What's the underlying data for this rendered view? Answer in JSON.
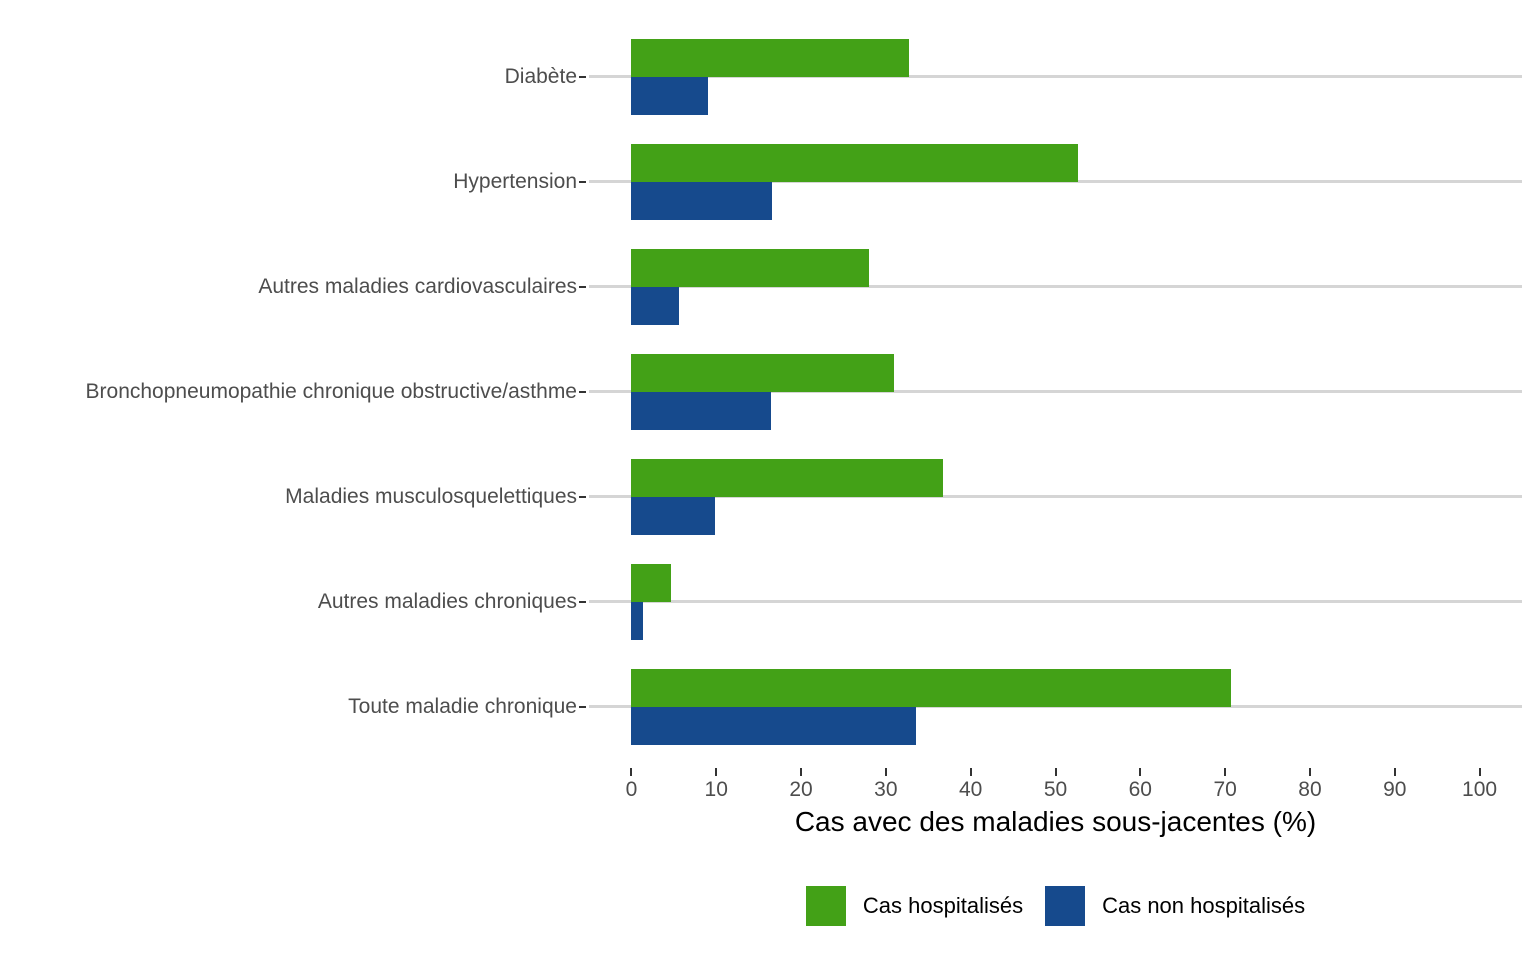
{
  "chart_data": {
    "type": "bar",
    "orientation": "horizontal",
    "title": "",
    "xlabel": "Cas avec des maladies sous-jacentes (%)",
    "ylabel": "",
    "xlim": [
      0,
      100
    ],
    "xticks": [
      0,
      10,
      20,
      30,
      40,
      50,
      60,
      70,
      80,
      90,
      100
    ],
    "grid": "horizontal",
    "legend_position": "bottom",
    "categories": [
      "Diabète",
      "Hypertension",
      "Autres maladies cardiovasculaires",
      "Bronchopneumopathie chronique obstructive/asthme",
      "Maladies musculosquelettiques",
      "Autres maladies chroniques",
      "Toute maladie chronique"
    ],
    "series": [
      {
        "name": "Cas hospitalisés",
        "color": "#43a117",
        "values": [
          32.7,
          52.7,
          28.0,
          31.0,
          36.7,
          4.7,
          70.7
        ]
      },
      {
        "name": "Cas non hospitalisés",
        "color": "#164a8d",
        "values": [
          9.0,
          16.6,
          5.6,
          16.5,
          9.9,
          1.4,
          33.6
        ]
      }
    ]
  }
}
